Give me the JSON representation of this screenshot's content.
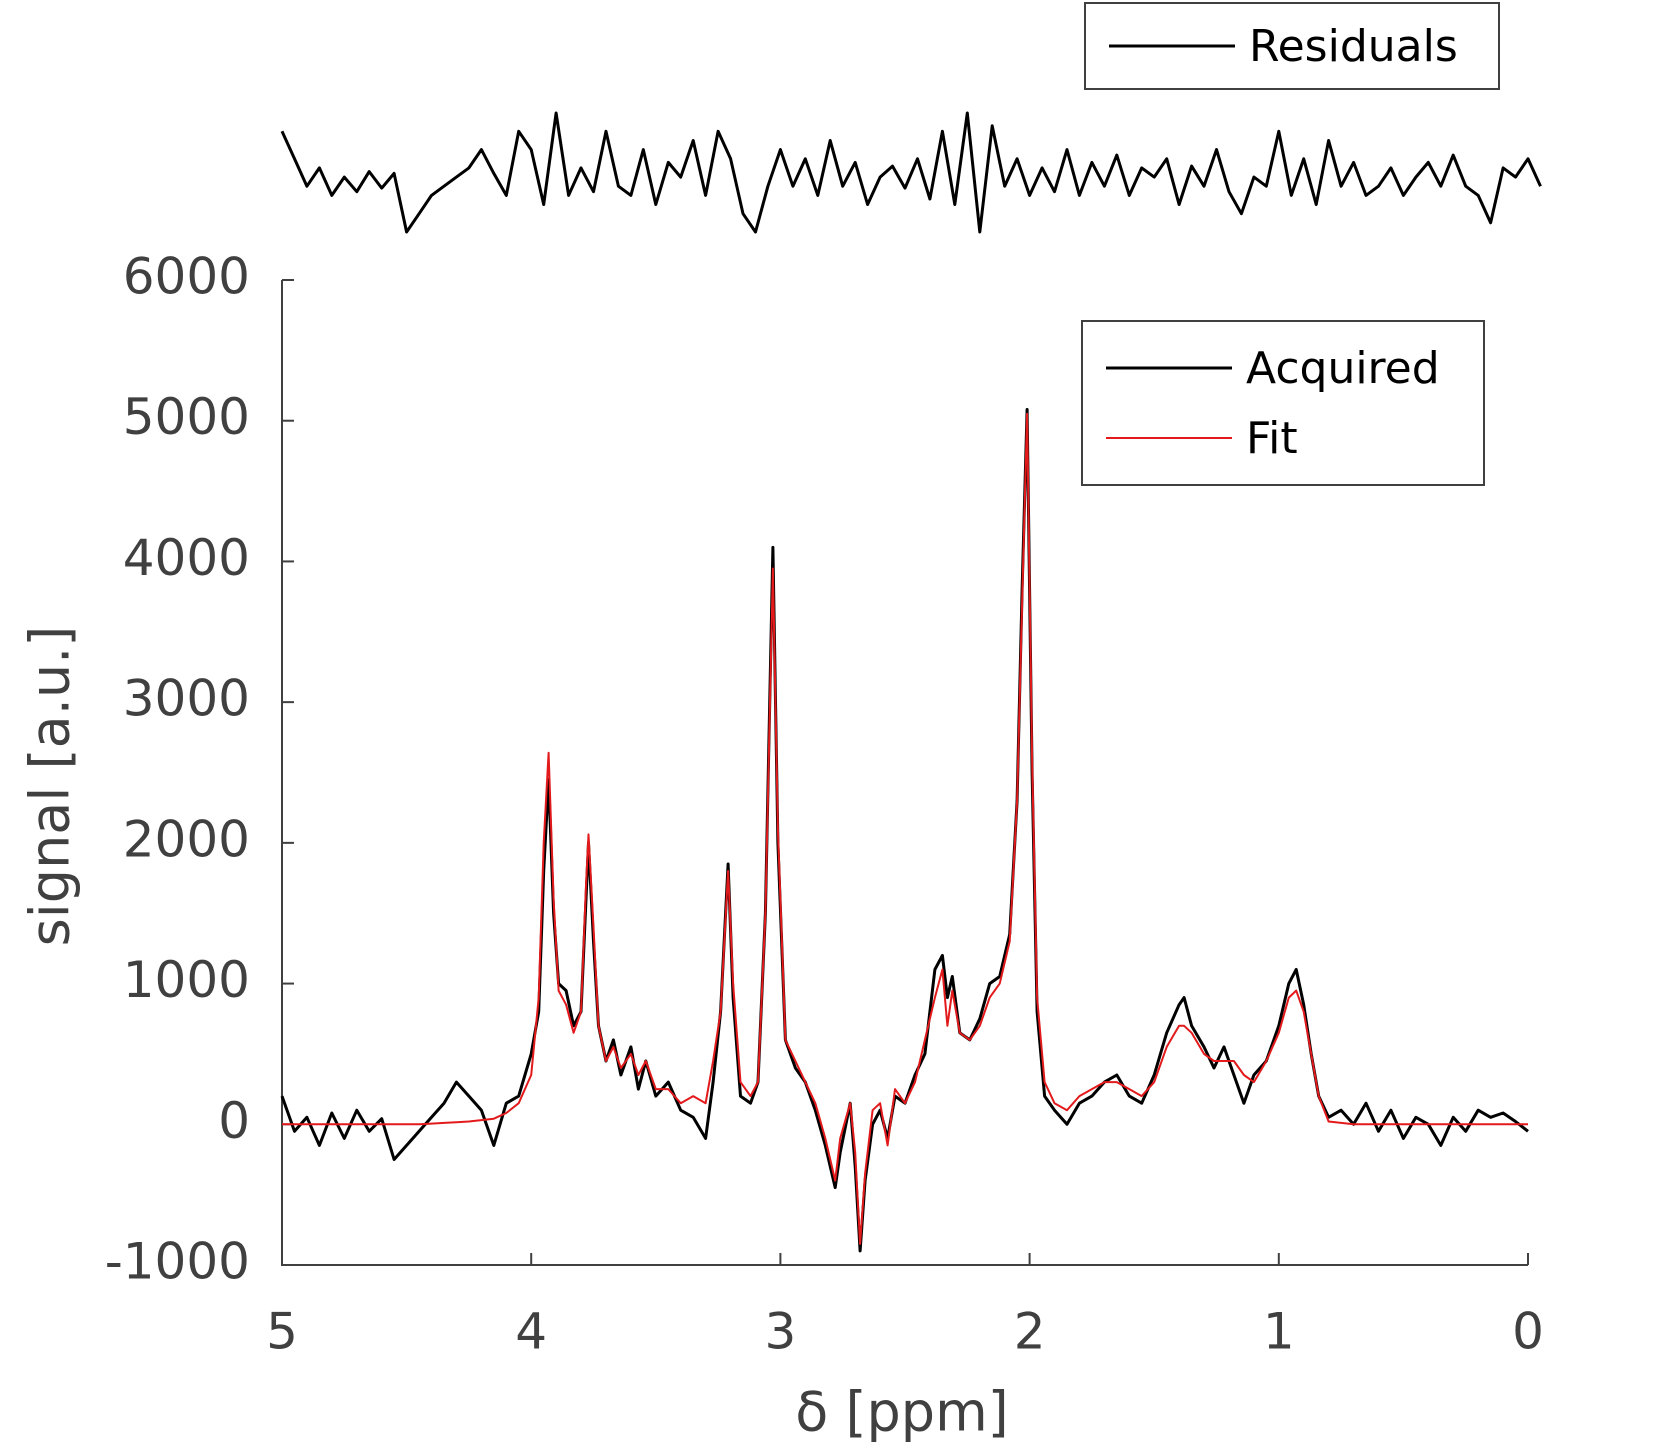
{
  "chart_data": [
    {
      "type": "line",
      "xlabel": "δ [ppm]",
      "ylabel": "signal [a.u.]",
      "xlim": [
        5,
        0
      ],
      "xticks": [
        5,
        4,
        3,
        2,
        1,
        0
      ],
      "ylim": [
        -1000,
        6000
      ],
      "yticks": [
        -1000,
        0,
        1000,
        2000,
        3000,
        4000,
        5000,
        6000
      ],
      "legend": "upper right",
      "x": [
        5,
        4.95,
        4.9,
        4.85,
        4.8,
        4.75,
        4.7,
        4.65,
        4.6,
        4.55,
        4.5,
        4.45,
        4.4,
        4.35,
        4.3,
        4.25,
        4.2,
        4.15,
        4.1,
        4.05,
        4,
        3.97,
        3.95,
        3.93,
        3.91,
        3.89,
        3.86,
        3.83,
        3.8,
        3.78,
        3.77,
        3.75,
        3.73,
        3.7,
        3.67,
        3.64,
        3.6,
        3.57,
        3.54,
        3.5,
        3.45,
        3.4,
        3.35,
        3.3,
        3.27,
        3.24,
        3.21,
        3.19,
        3.16,
        3.12,
        3.09,
        3.06,
        3.03,
        3.01,
        2.98,
        2.94,
        2.9,
        2.86,
        2.82,
        2.78,
        2.76,
        2.72,
        2.7,
        2.68,
        2.66,
        2.63,
        2.6,
        2.57,
        2.54,
        2.5,
        2.46,
        2.42,
        2.38,
        2.35,
        2.33,
        2.31,
        2.28,
        2.24,
        2.2,
        2.16,
        2.12,
        2.08,
        2.05,
        2.03,
        2.01,
        1.99,
        1.97,
        1.94,
        1.9,
        1.85,
        1.8,
        1.75,
        1.7,
        1.65,
        1.6,
        1.55,
        1.5,
        1.45,
        1.4,
        1.38,
        1.35,
        1.3,
        1.26,
        1.22,
        1.18,
        1.14,
        1.1,
        1.05,
        1,
        0.96,
        0.93,
        0.9,
        0.87,
        0.84,
        0.8,
        0.75,
        0.7,
        0.65,
        0.6,
        0.55,
        0.5,
        0.45,
        0.4,
        0.35,
        0.3,
        0.25,
        0.2,
        0.15,
        0.1,
        0.05,
        0
      ],
      "series": [
        {
          "name": "Acquired",
          "color": "#000000",
          "values": [
            200,
            -50,
            50,
            -150,
            80,
            -100,
            100,
            -50,
            40,
            -250,
            -150,
            -50,
            50,
            150,
            300,
            200,
            100,
            -150,
            150,
            200,
            500,
            800,
            1800,
            2450,
            1500,
            1000,
            950,
            700,
            800,
            1600,
            2000,
            1300,
            700,
            450,
            600,
            350,
            550,
            250,
            450,
            200,
            300,
            100,
            50,
            -100,
            300,
            800,
            1850,
            900,
            200,
            150,
            300,
            1500,
            4100,
            2000,
            600,
            400,
            300,
            100,
            -150,
            -450,
            -200,
            150,
            -300,
            -900,
            -400,
            0,
            100,
            -100,
            200,
            150,
            350,
            500,
            1100,
            1200,
            900,
            1050,
            650,
            600,
            750,
            1000,
            1050,
            1350,
            2300,
            3800,
            5080,
            2500,
            800,
            200,
            100,
            0,
            150,
            200,
            300,
            350,
            200,
            150,
            350,
            650,
            850,
            900,
            700,
            550,
            400,
            550,
            350,
            150,
            350,
            450,
            700,
            1000,
            1100,
            850,
            500,
            200,
            50,
            100,
            0,
            150,
            -50,
            100,
            -100,
            50,
            0,
            -150,
            50,
            -50,
            100,
            50,
            80,
            20,
            -50
          ]
        },
        {
          "name": "Fit",
          "color": "#e31a1c",
          "values": [
            0,
            0,
            0,
            0,
            0,
            0,
            0,
            0,
            0,
            0,
            0,
            0,
            5,
            10,
            15,
            20,
            30,
            40,
            80,
            150,
            350,
            900,
            2000,
            2640,
            1600,
            950,
            850,
            650,
            800,
            1700,
            2060,
            1400,
            700,
            450,
            550,
            400,
            500,
            350,
            450,
            250,
            250,
            150,
            200,
            150,
            450,
            800,
            1800,
            1000,
            300,
            200,
            300,
            1500,
            3950,
            2100,
            600,
            450,
            300,
            150,
            -100,
            -400,
            -100,
            150,
            -200,
            -850,
            -350,
            100,
            150,
            -150,
            250,
            150,
            300,
            600,
            900,
            1100,
            700,
            950,
            650,
            600,
            700,
            900,
            1000,
            1300,
            2300,
            3700,
            5050,
            2600,
            900,
            300,
            150,
            100,
            200,
            250,
            300,
            300,
            250,
            200,
            300,
            550,
            700,
            700,
            650,
            500,
            450,
            450,
            450,
            350,
            300,
            450,
            650,
            900,
            950,
            800,
            500,
            200,
            20,
            10,
            0,
            0,
            0,
            0,
            0,
            0,
            0,
            0,
            0,
            0,
            0,
            0,
            0,
            0,
            0
          ]
        }
      ]
    },
    {
      "type": "line",
      "legend": "upper right",
      "x": [
        5,
        4.95,
        4.9,
        4.85,
        4.8,
        4.75,
        4.7,
        4.65,
        4.6,
        4.55,
        4.5,
        4.45,
        4.4,
        4.35,
        4.3,
        4.25,
        4.2,
        4.15,
        4.1,
        4.05,
        4,
        3.95,
        3.9,
        3.85,
        3.8,
        3.75,
        3.7,
        3.65,
        3.6,
        3.55,
        3.5,
        3.45,
        3.4,
        3.35,
        3.3,
        3.25,
        3.2,
        3.15,
        3.1,
        3.05,
        3,
        2.95,
        2.9,
        2.85,
        2.8,
        2.75,
        2.7,
        2.65,
        2.6,
        2.55,
        2.5,
        2.45,
        2.4,
        2.35,
        2.3,
        2.25,
        2.2,
        2.15,
        2.1,
        2.05,
        2,
        1.95,
        1.9,
        1.85,
        1.8,
        1.75,
        1.7,
        1.65,
        1.6,
        1.55,
        1.5,
        1.45,
        1.4,
        1.35,
        1.3,
        1.25,
        1.2,
        1.15,
        1.1,
        1.05,
        1,
        0.95,
        0.9,
        0.85,
        0.8,
        0.75,
        0.7,
        0.65,
        0.6,
        0.55,
        0.5,
        0.45,
        0.4,
        0.35,
        0.3,
        0.25,
        0.2,
        0.15,
        0.1,
        0.05,
        0,
        -0.05
      ],
      "series": [
        {
          "name": "Residuals",
          "color": "#000000",
          "values": [
            250,
            100,
            -50,
            50,
            -100,
            0,
            -80,
            30,
            -60,
            20,
            -300,
            -200,
            -100,
            -50,
            0,
            50,
            150,
            20,
            -100,
            250,
            150,
            -150,
            350,
            -100,
            50,
            -80,
            250,
            -50,
            -100,
            150,
            -150,
            80,
            0,
            200,
            -100,
            250,
            100,
            -200,
            -300,
            -50,
            150,
            -50,
            100,
            -100,
            200,
            -50,
            80,
            -150,
            0,
            60,
            -60,
            100,
            -120,
            250,
            -150,
            350,
            -300,
            280,
            -50,
            100,
            -100,
            50,
            -80,
            150,
            -100,
            80,
            -50,
            120,
            -100,
            50,
            0,
            100,
            -150,
            60,
            -50,
            150,
            -80,
            -200,
            0,
            -50,
            250,
            -100,
            100,
            -150,
            200,
            -50,
            80,
            -100,
            -50,
            50,
            -100,
            0,
            80,
            -50,
            120,
            -50,
            -100,
            -250,
            50,
            0,
            100,
            -50
          ]
        }
      ]
    }
  ]
}
